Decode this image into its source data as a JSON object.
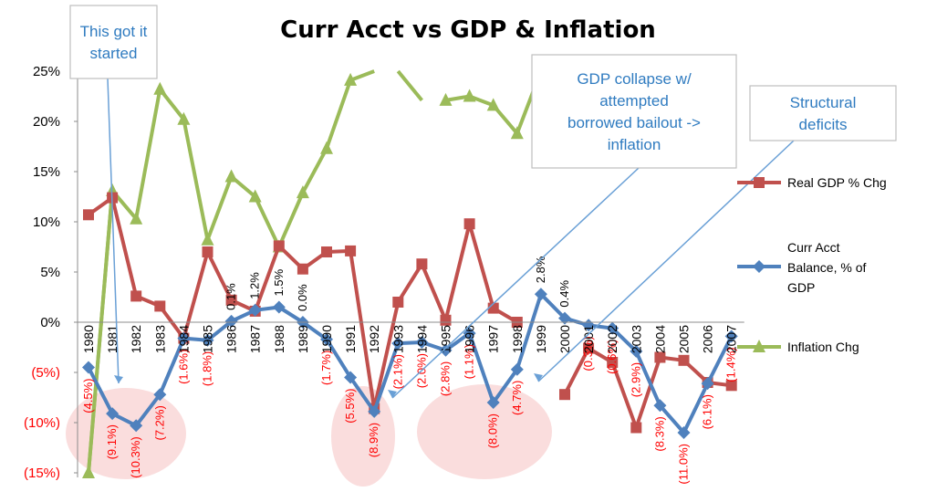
{
  "chart_data": {
    "type": "line",
    "title": "Curr Acct vs GDP & Inflation",
    "x": [
      1980,
      1981,
      1982,
      1983,
      1984,
      1985,
      1986,
      1987,
      1988,
      1989,
      1990,
      1991,
      1992,
      1993,
      1994,
      1995,
      1996,
      1997,
      1998,
      1999,
      2000,
      2001,
      2002,
      2003,
      2004,
      2005,
      2006,
      2007
    ],
    "ylim": [
      -15,
      25
    ],
    "yticks": [
      "(15%)",
      "(10%)",
      "(5%)",
      "0%",
      "5%",
      "10%",
      "15%",
      "20%",
      "25%"
    ],
    "ytick_values": [
      -15,
      -10,
      -5,
      0,
      5,
      10,
      15,
      20,
      25
    ],
    "series": [
      {
        "name": "Real GDP % Chg",
        "color": "#c0504d",
        "marker": "square",
        "values": [
          10.7,
          12.4,
          2.6,
          1.6,
          -1.6,
          7.0,
          2.2,
          1.1,
          7.6,
          5.3,
          7.0,
          7.1,
          -8.6,
          2.0,
          5.8,
          0.2,
          9.8,
          1.4,
          0.0,
          null,
          -7.2,
          -2.6,
          -4.0,
          -10.5,
          -3.5,
          -3.8,
          -6.0,
          -6.3
        ]
      },
      {
        "name": "Curr Acct Balance, % of GDP",
        "color": "#4f81bd",
        "marker": "diamond",
        "values": [
          -4.5,
          -9.1,
          -10.3,
          -7.2,
          -1.6,
          -1.8,
          0.1,
          1.2,
          1.5,
          0.0,
          -1.7,
          -5.5,
          -8.9,
          -2.1,
          -2.0,
          -2.8,
          -1.1,
          -8.0,
          -4.7,
          2.8,
          0.4,
          -0.3,
          -0.6,
          -2.9,
          -8.3,
          -11.0,
          -6.1,
          -1.4
        ]
      },
      {
        "name": "Inflation Chg",
        "color": "#9bbb59",
        "marker": "triangle",
        "values": [
          -15.0,
          13.1,
          10.3,
          23.2,
          20.2,
          8.2,
          14.5,
          12.5,
          7.5,
          12.9,
          17.3,
          24.1,
          null,
          null,
          null,
          22.1,
          22.5,
          21.6,
          18.8,
          null,
          null,
          null,
          null,
          null,
          null,
          null,
          null,
          null
        ]
      }
    ],
    "inflation_offscale_segments": [
      [
        1980,
        -15.0,
        1981,
        13.1
      ],
      [
        1991,
        24.1,
        1992,
        27
      ],
      [
        1993,
        27,
        1994,
        22.1
      ],
      [
        1998,
        18.8,
        1999,
        27
      ]
    ],
    "point_labels": {
      "1980": "(4.5%)",
      "1981": "(9.1%)",
      "1982": "(10.3%)",
      "1983": "(7.2%)",
      "1984": "(1.6%)",
      "1985": "(1.8%)",
      "1986": "0.1%",
      "1987": "1.2%",
      "1988": "1.5%",
      "1989": "0.0%",
      "1990": "(1.7%)",
      "1991": "(5.5%)",
      "1992": "(8.9%)",
      "1993": "(2.1%)",
      "1994": "(2.0%)",
      "1995": "(2.8%)",
      "1996": "(1.1%)",
      "1997": "(8.0%)",
      "1998": "(4.7%)",
      "1999": "2.8%",
      "2000": "0.4%",
      "2001": "(0.3%)",
      "2002": "(0.6%)",
      "2003": "(2.9%)",
      "2004": "(8.3%)",
      "2005": "(11.0%)",
      "2006": "(6.1%)",
      "2007": "(1.4%)"
    },
    "legend": [
      "Real GDP % Chg",
      "Curr Acct Balance, % of GDP",
      "Inflation Chg"
    ],
    "legend_position": "right",
    "grid": false,
    "annotations": [
      {
        "lines": [
          "This got it",
          "started"
        ]
      },
      {
        "lines": [
          "GDP collapse w/",
          "attempted",
          "borrowed bailout ->",
          "inflation"
        ]
      },
      {
        "lines": [
          "Structural",
          "deficits"
        ]
      }
    ],
    "highlight_groups": [
      [
        1980,
        1983
      ],
      [
        1991,
        1992
      ],
      [
        1995,
        1998
      ]
    ],
    "label_colors": {
      "negative": "#ff0000",
      "positive": "#000000"
    }
  }
}
